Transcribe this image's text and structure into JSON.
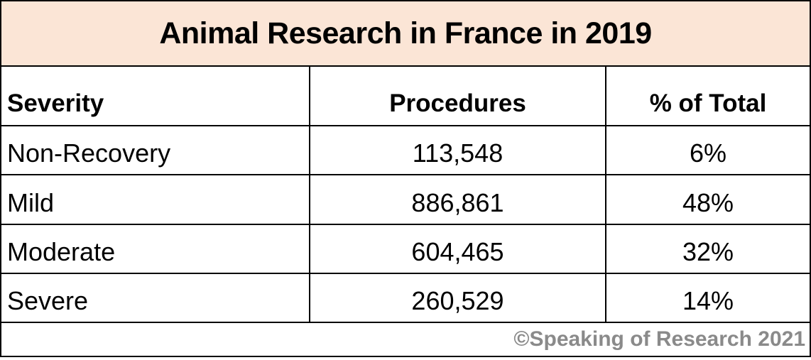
{
  "table": {
    "title": "Animal Research in France in 2019",
    "columns": [
      "Severity",
      "Procedures",
      "% of Total"
    ],
    "rows": [
      {
        "severity": "Non-Recovery",
        "procedures": "113,548",
        "percent": "6%"
      },
      {
        "severity": "Mild",
        "procedures": "886,861",
        "percent": "48%"
      },
      {
        "severity": "Moderate",
        "procedures": "604,465",
        "percent": "32%"
      },
      {
        "severity": "Severe",
        "procedures": "260,529",
        "percent": "14%"
      }
    ],
    "footer": "©Speaking of Research 2021"
  },
  "colors": {
    "title_background": "#fbe5d6",
    "border": "#000000",
    "body_text": "#000000",
    "footer_text": "#8a8a8a"
  },
  "chart_data": {
    "type": "table",
    "title": "Animal Research in France in 2019",
    "columns": [
      "Severity",
      "Procedures",
      "% of Total"
    ],
    "categories": [
      "Non-Recovery",
      "Mild",
      "Moderate",
      "Severe"
    ],
    "series": [
      {
        "name": "Procedures",
        "values": [
          113548,
          886861,
          604465,
          260529
        ]
      },
      {
        "name": "% of Total",
        "values": [
          6,
          48,
          32,
          14
        ]
      }
    ],
    "annotations": [
      "©Speaking of Research 2021"
    ],
    "legend_position": "none",
    "grid": true
  }
}
